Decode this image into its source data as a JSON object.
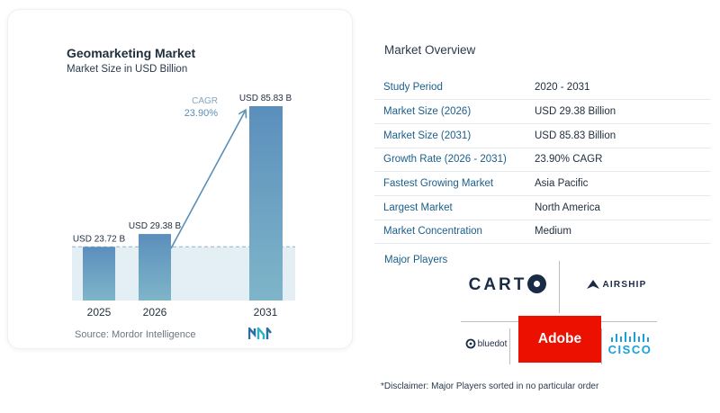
{
  "left_card": {
    "title": "Geomarketing Market",
    "subtitle": "Market Size in USD Billion",
    "source": "Source:  Mordor Intelligence"
  },
  "chart_data": {
    "type": "bar",
    "title": "Geomarketing Market",
    "subtitle": "Market Size in USD Billion",
    "categories": [
      "2025",
      "2026",
      "2031"
    ],
    "values": [
      23.72,
      29.38,
      85.83
    ],
    "value_labels": [
      "USD 23.72 B",
      "USD 29.38 B",
      "USD 85.83 B"
    ],
    "cagr_label": "CAGR",
    "cagr_value": "23.90%",
    "ylim": [
      0,
      85.83
    ],
    "grid": false,
    "colors": {
      "bar_top": "#5b8fbc",
      "bar_bottom": "#7fb5c9",
      "arrow": "#5a8fb7",
      "band": "#d6e5ef",
      "cagr_text": "#5a8fb7"
    }
  },
  "overview": {
    "title": "Market Overview",
    "rows": [
      {
        "key": "Study Period",
        "value": "2020 - 2031"
      },
      {
        "key": "Market Size (2026)",
        "value": "USD 29.38 Billion"
      },
      {
        "key": "Market Size (2031)",
        "value": "USD 85.83 Billion"
      },
      {
        "key": "Growth Rate (2026 - 2031)",
        "value": "23.90% CAGR"
      },
      {
        "key": "Fastest Growing Market",
        "value": "Asia Pacific"
      },
      {
        "key": "Largest Market",
        "value": "North America"
      },
      {
        "key": "Market Concentration",
        "value": "Medium"
      }
    ]
  },
  "players": {
    "title": "Major Players",
    "carto": "CART",
    "airship": "AIRSHIP",
    "adobe": "Adobe",
    "bluedot": "bluedot",
    "cisco": "CISCO"
  },
  "disclaimer": "*Disclaimer: Major Players sorted in no particular order",
  "colors": {
    "accent": "#1b5e8a",
    "adobe": "#eb1000",
    "cisco": "#1ba0d7"
  }
}
